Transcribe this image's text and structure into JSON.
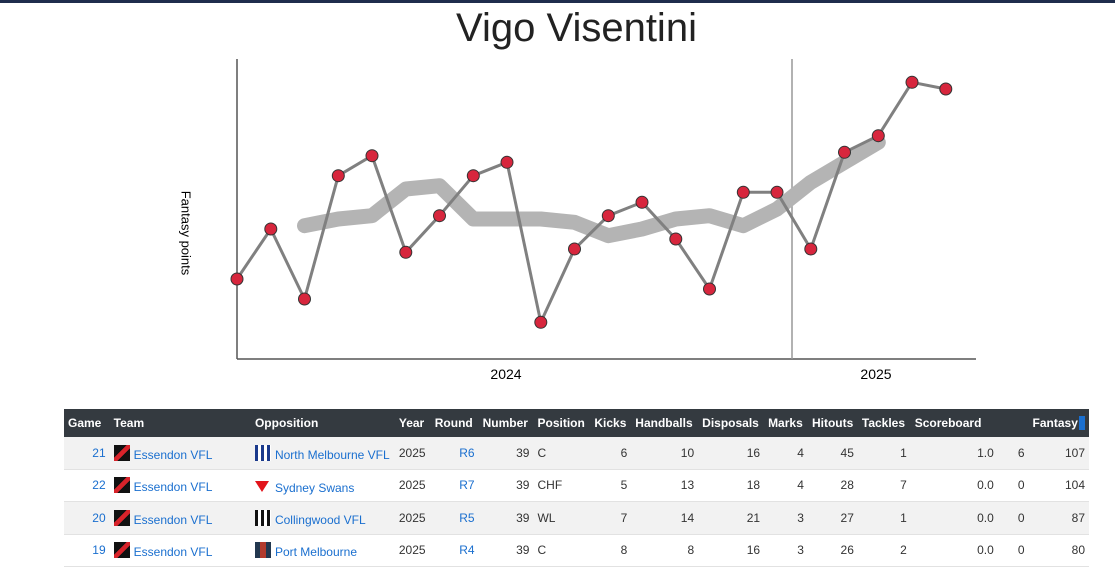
{
  "player": {
    "name": "Vigo Visentini"
  },
  "chart_data": {
    "type": "line",
    "ylabel": "Fantasy points",
    "x_tick_labels": [
      "2024",
      "2025"
    ],
    "y_range": [
      45,
      135
    ],
    "games": [
      {
        "season": "2024",
        "value": 69
      },
      {
        "season": "2024",
        "value": 84
      },
      {
        "season": "2024",
        "value": 63
      },
      {
        "season": "2024",
        "value": 100
      },
      {
        "season": "2024",
        "value": 106
      },
      {
        "season": "2024",
        "value": 77
      },
      {
        "season": "2024",
        "value": 88
      },
      {
        "season": "2024",
        "value": 100
      },
      {
        "season": "2024",
        "value": 104
      },
      {
        "season": "2024",
        "value": 56
      },
      {
        "season": "2024",
        "value": 78
      },
      {
        "season": "2024",
        "value": 88
      },
      {
        "season": "2024",
        "value": 92
      },
      {
        "season": "2024",
        "value": 81
      },
      {
        "season": "2024",
        "value": 66
      },
      {
        "season": "2024",
        "value": 95
      },
      {
        "season": "2024",
        "value": 95
      },
      {
        "season": "2025",
        "value": 78
      },
      {
        "season": "2025",
        "value": 107
      },
      {
        "season": "2025",
        "value": 112
      },
      {
        "season": "2025",
        "value": 128
      },
      {
        "season": "2025",
        "value": 126
      }
    ],
    "trend": [
      null,
      null,
      85,
      87,
      88,
      96,
      97,
      87,
      87,
      87,
      86,
      82,
      84,
      87,
      88,
      85,
      90,
      98,
      104,
      110,
      null,
      null
    ],
    "colors": {
      "line": "#808080",
      "point_fill": "#d7263d",
      "trend": "#b4b4b4"
    }
  },
  "table": {
    "headers": [
      "Game",
      "Team",
      "Opposition",
      "Year",
      "Round",
      "Number",
      "Position",
      "Kicks",
      "Handballs",
      "Disposals",
      "Marks",
      "Hitouts",
      "Tackles",
      "Scoreboard",
      "",
      "Fantasy"
    ],
    "rows": [
      {
        "game": "21",
        "team": "Essendon VFL",
        "team_logo": "ess",
        "opposition": "North Melbourne VFL",
        "opp_logo": "nm",
        "year": "2025",
        "round": "R6",
        "number": "39",
        "position": "C",
        "kicks": "6",
        "handballs": "10",
        "disposals": "16",
        "marks": "4",
        "hitouts": "45",
        "tackles": "1",
        "scoreboard": "1.0",
        "extra": "6",
        "fantasy": "107"
      },
      {
        "game": "22",
        "team": "Essendon VFL",
        "team_logo": "ess",
        "opposition": "Sydney Swans",
        "opp_logo": "swans",
        "year": "2025",
        "round": "R7",
        "number": "39",
        "position": "CHF",
        "kicks": "5",
        "handballs": "13",
        "disposals": "18",
        "marks": "4",
        "hitouts": "28",
        "tackles": "7",
        "scoreboard": "0.0",
        "extra": "0",
        "fantasy": "104"
      },
      {
        "game": "20",
        "team": "Essendon VFL",
        "team_logo": "ess",
        "opposition": "Collingwood VFL",
        "opp_logo": "coll",
        "year": "2025",
        "round": "R5",
        "number": "39",
        "position": "WL",
        "kicks": "7",
        "handballs": "14",
        "disposals": "21",
        "marks": "3",
        "hitouts": "27",
        "tackles": "1",
        "scoreboard": "0.0",
        "extra": "0",
        "fantasy": "87"
      },
      {
        "game": "19",
        "team": "Essendon VFL",
        "team_logo": "ess",
        "opposition": "Port Melbourne",
        "opp_logo": "pm",
        "year": "2025",
        "round": "R4",
        "number": "39",
        "position": "C",
        "kicks": "8",
        "handballs": "8",
        "disposals": "16",
        "marks": "3",
        "hitouts": "26",
        "tackles": "2",
        "scoreboard": "0.0",
        "extra": "0",
        "fantasy": "80"
      }
    ]
  }
}
